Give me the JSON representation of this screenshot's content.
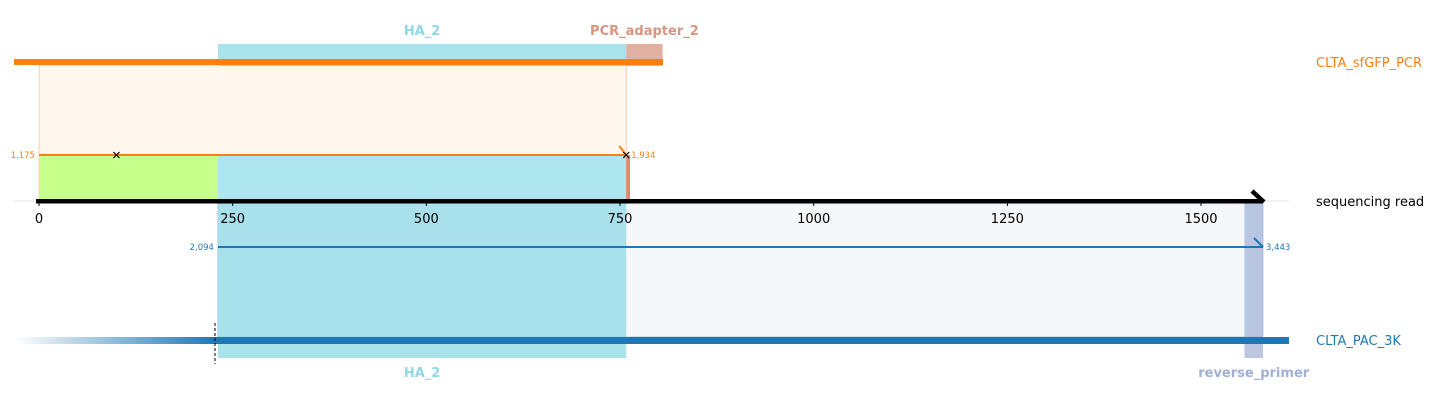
{
  "read": {
    "name": "sequencing read",
    "length": 1580,
    "ticks": [
      0,
      250,
      500,
      750,
      1000,
      1250,
      1500
    ]
  },
  "references": [
    {
      "name": "CLTA_sfGFP_PCR",
      "color": "#ff7f0e",
      "alignment": {
        "read_start": 0,
        "read_end": 758,
        "ref_start": 1175,
        "ref_end": 1934,
        "ref_start_label": "1,175",
        "ref_end_label": "1,934",
        "mismatches": [
          100,
          758
        ]
      },
      "features": [
        {
          "name": "HA_2",
          "color": "#8fd9e6",
          "read_start": 231,
          "read_end": 758
        },
        {
          "name": "PCR_adapter_2",
          "color": "#d89580",
          "read_start": 758,
          "read_end": 805
        }
      ]
    },
    {
      "name": "CLTA_PAC_3K",
      "color": "#1f77b4",
      "alignment": {
        "read_start": 231,
        "read_end": 1580,
        "ref_start": 2094,
        "ref_end": 3443,
        "ref_start_label": "2,094",
        "ref_end_label": "3,443"
      },
      "features": [
        {
          "name": "HA_2",
          "color": "#8fd9e6",
          "read_start": 231,
          "read_end": 758
        },
        {
          "name": "reverse_primer",
          "color": "#9fb0d6",
          "read_start": 1556,
          "read_end": 1580
        }
      ]
    }
  ],
  "read_features": [
    {
      "name": "",
      "color": "#c6ff8a",
      "read_start": 0,
      "read_end": 231
    },
    {
      "name": "",
      "color": "#aee6ef",
      "read_start": 231,
      "read_end": 758
    },
    {
      "name": "",
      "color": "#e08a6a",
      "read_start": 758,
      "read_end": 763
    }
  ]
}
